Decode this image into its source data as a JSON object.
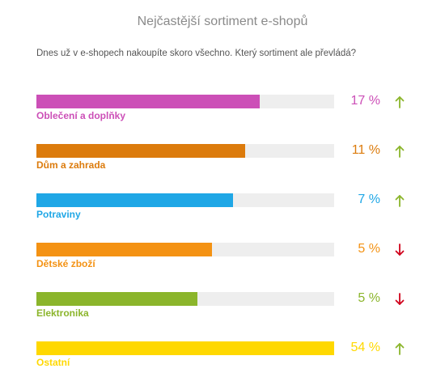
{
  "chart_data": {
    "type": "bar",
    "title": "Nejčastější sortiment e-shopů",
    "subtitle": "Dnes už v e-shopech nakoupíte skoro všechno. Který sortiment ale převládá?",
    "categories": [
      "Oblečení a doplňky",
      "Dům a zahrada",
      "Potraviny",
      "Dětské zboží",
      "Elektronika",
      "Ostatní"
    ],
    "values": [
      17,
      11,
      7,
      5,
      5,
      54
    ],
    "value_labels": [
      "17 %",
      "11 %",
      "7 %",
      "5 %",
      "5 %",
      "54 %"
    ],
    "bar_fill_fraction": [
      0.75,
      0.7,
      0.66,
      0.59,
      0.54,
      1.0
    ],
    "trend": [
      "up",
      "up",
      "up",
      "down",
      "down",
      "up"
    ],
    "colors": [
      "#cc4fb7",
      "#dc7b0c",
      "#1fa7e6",
      "#f49213",
      "#8bb52b",
      "#ffd800"
    ],
    "trend_colors": {
      "up": "#8bb52b",
      "down": "#d0021b"
    }
  }
}
